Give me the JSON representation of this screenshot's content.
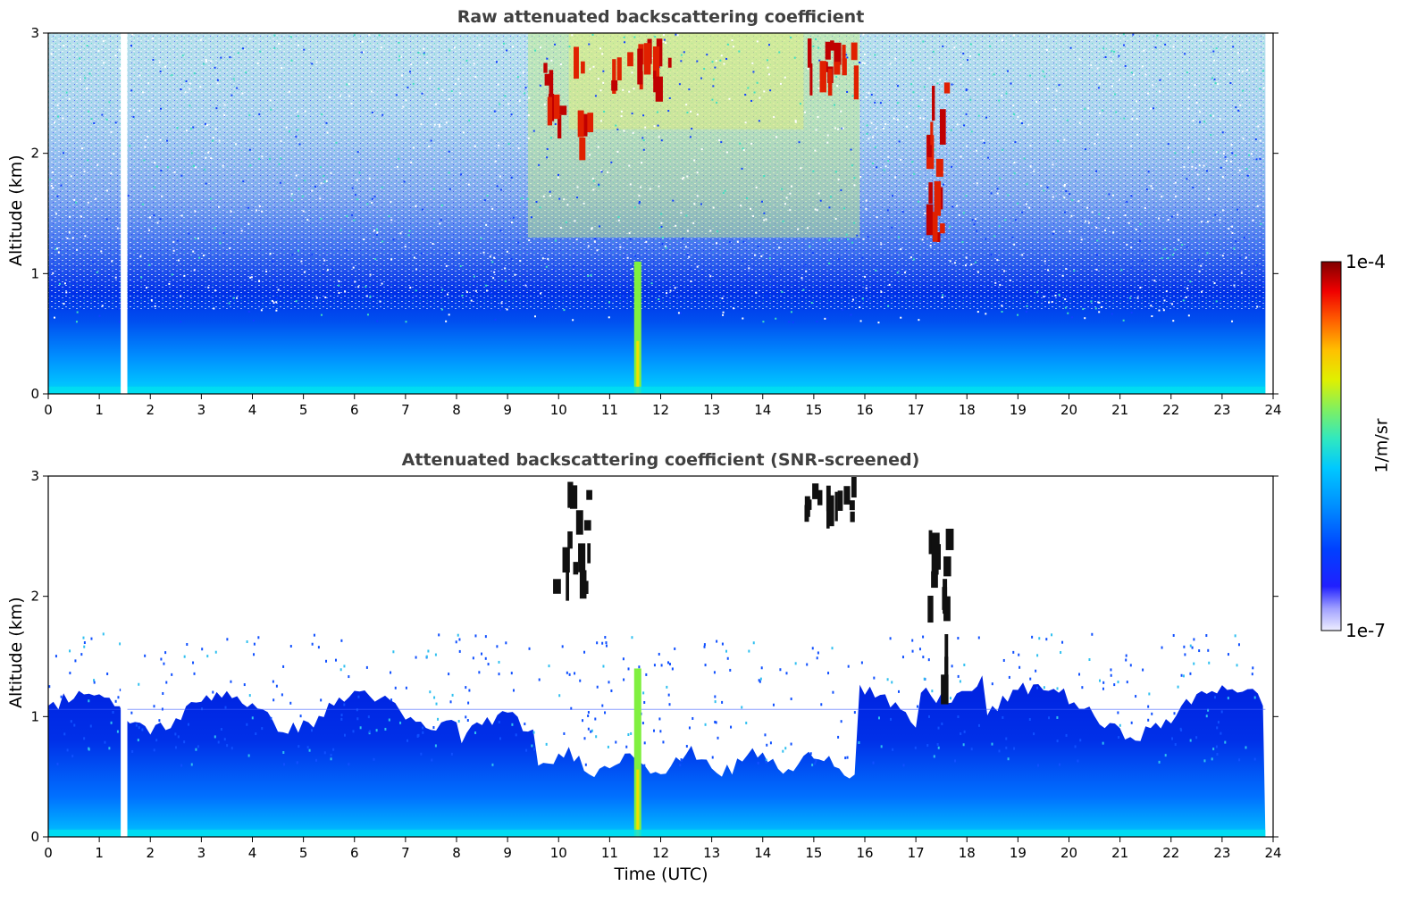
{
  "chart_data": [
    {
      "type": "heatmap",
      "title": "Raw attenuated backscattering coefficient",
      "ylabel": "Altitude (km)",
      "xlabel": "",
      "xlim": [
        0,
        24
      ],
      "ylim": [
        0,
        3
      ],
      "xticks": [
        "0",
        "1",
        "2",
        "3",
        "4",
        "5",
        "6",
        "7",
        "8",
        "9",
        "10",
        "11",
        "12",
        "13",
        "14",
        "15",
        "16",
        "17",
        "18",
        "19",
        "20",
        "21",
        "22",
        "23",
        "24"
      ],
      "yticks": [
        "0",
        "1",
        "2",
        "3"
      ],
      "screened": false,
      "data_gaps_utc": [
        [
          1.42,
          1.55
        ],
        [
          23.85,
          24
        ]
      ],
      "features": [
        {
          "description": "aerosol boundary layer",
          "x_range": [
            0,
            23.85
          ],
          "top_km": 0.6
        },
        {
          "description": "strong vertical column",
          "x_utc": 11.55,
          "top_km": 1.1
        },
        {
          "description": "clouds",
          "x_range": [
            9.7,
            10.6
          ],
          "y_range": [
            2.1,
            3.0
          ]
        },
        {
          "description": "clouds",
          "x_range": [
            11.0,
            12.3
          ],
          "y_range": [
            2.6,
            3.0
          ]
        },
        {
          "description": "clouds",
          "x_range": [
            14.8,
            15.8
          ],
          "y_range": [
            2.7,
            3.0
          ]
        },
        {
          "description": "clouds",
          "x_range": [
            17.2,
            17.6
          ],
          "y_range": [
            1.3,
            2.6
          ]
        }
      ]
    },
    {
      "type": "heatmap",
      "title": "Attenuated backscattering coefficient (SNR-screened)",
      "ylabel": "Altitude (km)",
      "xlabel": "Time (UTC)",
      "xlim": [
        0,
        24
      ],
      "ylim": [
        0,
        3
      ],
      "xticks": [
        "0",
        "1",
        "2",
        "3",
        "4",
        "5",
        "6",
        "7",
        "8",
        "9",
        "10",
        "11",
        "12",
        "13",
        "14",
        "15",
        "16",
        "17",
        "18",
        "19",
        "20",
        "21",
        "22",
        "23",
        "24"
      ],
      "yticks": [
        "0",
        "1",
        "2",
        "3"
      ],
      "screened": true,
      "data_gaps_utc": [
        [
          1.42,
          1.55
        ],
        [
          23.85,
          24
        ]
      ],
      "features": [
        {
          "description": "screened layer top",
          "x_range": [
            0,
            9.5
          ],
          "top_km": 1.2
        },
        {
          "description": "screened layer top",
          "x_range": [
            9.5,
            15.8
          ],
          "top_km": 0.65
        },
        {
          "description": "screened layer top",
          "x_range": [
            15.8,
            23.85
          ],
          "top_km": 1.3
        },
        {
          "description": "strong vertical column",
          "x_utc": 11.55,
          "top_km": 1.4
        },
        {
          "description": "clouds",
          "x_range": [
            9.7,
            10.6
          ],
          "y_range": [
            2.1,
            3.0
          ]
        },
        {
          "description": "clouds",
          "x_range": [
            14.8,
            15.8
          ],
          "y_range": [
            2.7,
            3.0
          ]
        },
        {
          "description": "clouds",
          "x_range": [
            17.2,
            17.6
          ],
          "y_range": [
            1.3,
            2.6
          ]
        }
      ]
    }
  ],
  "colorbar": {
    "min_label": "1e-7",
    "max_label": "1e-4",
    "label": "1/m/sr",
    "colors": [
      "#e8e8ff",
      "#a0a0ff",
      "#3030ff",
      "#0000ff",
      "#0040ff",
      "#0080ff",
      "#00c0ff",
      "#20e0e0",
      "#40f0a0",
      "#a0f040",
      "#f0f000",
      "#ffc000",
      "#ff6000",
      "#ff0000",
      "#c00000",
      "#800000"
    ]
  }
}
